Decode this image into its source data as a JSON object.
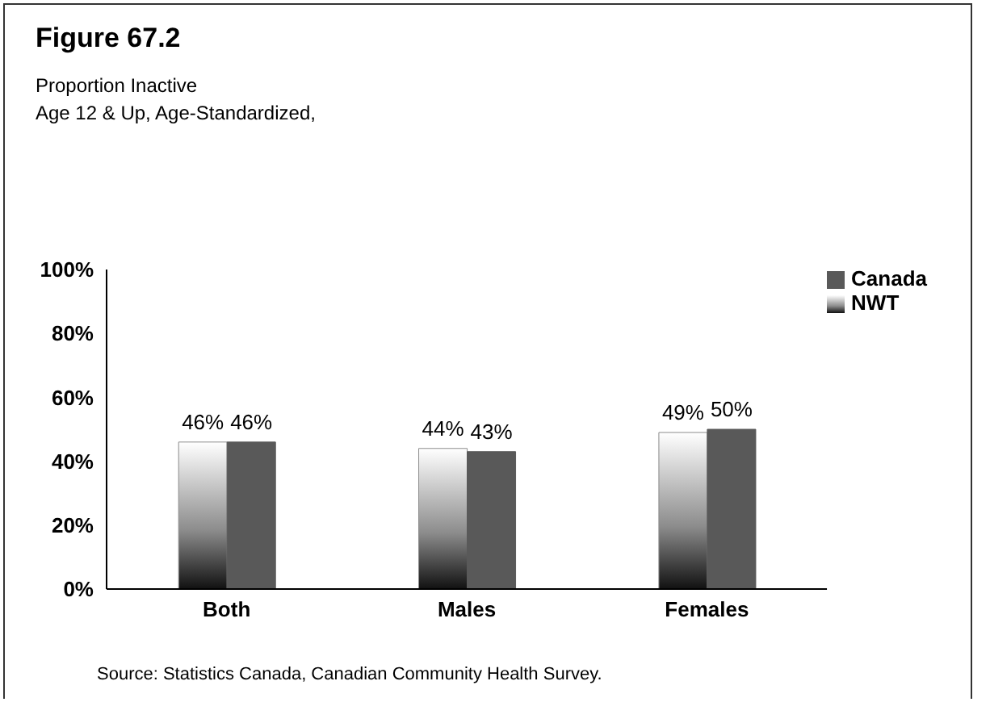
{
  "chart_data": {
    "type": "bar",
    "title": "Figure 67.2",
    "subtitle": "Proportion Inactive\nAge 12 & Up, Age-Standardized,",
    "categories": [
      "Both",
      "Males",
      "Females"
    ],
    "series": [
      {
        "name": "NWT",
        "color": "#8c8c8c",
        "values": [
          46,
          44,
          49
        ],
        "value_labels": [
          "46%",
          "44%",
          "49%"
        ]
      },
      {
        "name": "Canada",
        "color": "#595959",
        "values": [
          46,
          43,
          50
        ],
        "value_labels": [
          "46%",
          "43%",
          "50%"
        ]
      }
    ],
    "ylim": [
      0,
      100
    ],
    "yticks": [
      {
        "value": 0,
        "label": "0%"
      },
      {
        "value": 20,
        "label": "20%"
      },
      {
        "value": 40,
        "label": "40%"
      },
      {
        "value": 60,
        "label": "60%"
      },
      {
        "value": 80,
        "label": "80%"
      },
      {
        "value": 100,
        "label": "100%"
      }
    ],
    "grid": false,
    "legend": "top right",
    "annotations": [
      "Source: Statistics Canada, Canadian Community Health Survey."
    ]
  }
}
